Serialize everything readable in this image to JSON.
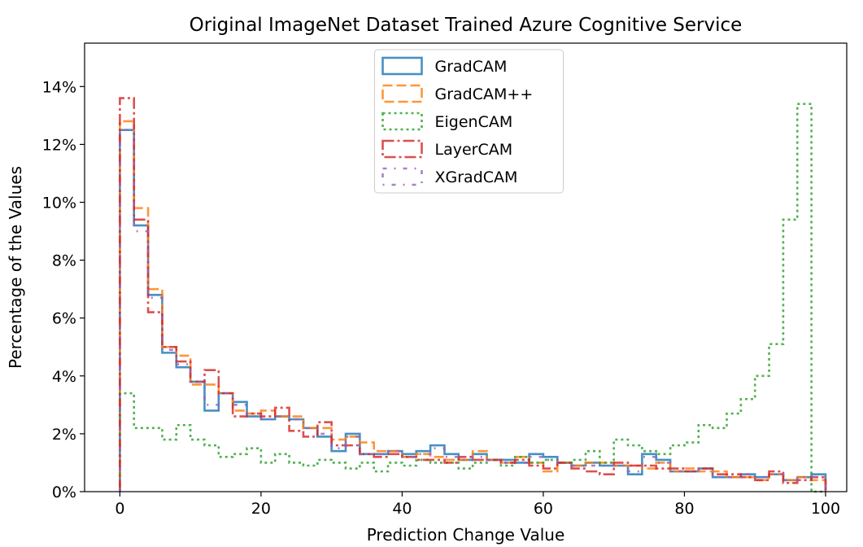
{
  "chart_data": {
    "type": "histogram-step",
    "title": "Original ImageNet Dataset Trained Azure Cognitive Service",
    "xlabel": "Prediction Change Value",
    "ylabel": "Percentage of the Values",
    "xlim": [
      -5,
      103
    ],
    "ylim": [
      0,
      15.5
    ],
    "xticks": [
      0,
      20,
      40,
      60,
      80,
      100
    ],
    "xtick_labels": [
      "0",
      "20",
      "40",
      "60",
      "80",
      "100"
    ],
    "yticks": [
      0,
      2,
      4,
      6,
      8,
      10,
      12,
      14
    ],
    "ytick_labels": [
      "0%",
      "2%",
      "4%",
      "6%",
      "8%",
      "10%",
      "12%",
      "14%"
    ],
    "legend_position": "top-center",
    "bin_edges": [
      0,
      2,
      4,
      6,
      8,
      10,
      12,
      14,
      16,
      18,
      20,
      22,
      24,
      26,
      28,
      30,
      32,
      34,
      36,
      38,
      40,
      42,
      44,
      46,
      48,
      50,
      52,
      54,
      56,
      58,
      60,
      62,
      64,
      66,
      68,
      70,
      72,
      74,
      76,
      78,
      80,
      82,
      84,
      86,
      88,
      90,
      92,
      94,
      96,
      98,
      100
    ],
    "series": [
      {
        "name": "GradCAM",
        "color": "#1f77b4",
        "dash": "solid",
        "values": [
          12.5,
          9.2,
          6.8,
          4.8,
          4.3,
          3.8,
          2.8,
          3.4,
          3.1,
          2.6,
          2.5,
          2.6,
          2.5,
          2.2,
          1.9,
          1.4,
          2.0,
          1.3,
          1.3,
          1.4,
          1.3,
          1.4,
          1.6,
          1.3,
          1.1,
          1.3,
          1.1,
          1.1,
          1.0,
          1.3,
          1.2,
          1.0,
          0.9,
          1.0,
          0.9,
          0.9,
          0.6,
          1.3,
          1.1,
          0.7,
          0.7,
          0.8,
          0.5,
          0.5,
          0.6,
          0.5,
          0.6,
          0.4,
          0.5,
          0.6
        ]
      },
      {
        "name": "GradCAM++",
        "color": "#ff7f0e",
        "dash": "dashed",
        "values": [
          12.8,
          9.8,
          7.0,
          5.0,
          4.7,
          3.7,
          3.7,
          3.4,
          2.8,
          2.7,
          2.8,
          2.6,
          2.6,
          2.2,
          2.2,
          1.8,
          1.9,
          1.7,
          1.4,
          1.4,
          1.2,
          1.3,
          1.2,
          1.1,
          1.1,
          1.4,
          1.1,
          1.0,
          1.2,
          1.0,
          0.7,
          1.0,
          0.9,
          1.0,
          1.0,
          0.9,
          0.9,
          0.8,
          1.0,
          0.7,
          0.8,
          0.7,
          0.7,
          0.5,
          0.5,
          0.4,
          0.6,
          0.4,
          0.5,
          0.4
        ]
      },
      {
        "name": "EigenCAM",
        "color": "#2ca02c",
        "dash": "dotted",
        "values": [
          3.4,
          2.2,
          2.2,
          1.8,
          2.3,
          1.8,
          1.6,
          1.2,
          1.3,
          1.5,
          1.0,
          1.3,
          1.0,
          0.9,
          1.1,
          1.0,
          0.8,
          1.0,
          0.7,
          1.0,
          0.9,
          1.1,
          1.0,
          1.0,
          0.8,
          1.0,
          1.1,
          0.9,
          1.2,
          1.0,
          1.1,
          1.0,
          1.1,
          1.4,
          1.0,
          1.8,
          1.6,
          1.4,
          1.3,
          1.6,
          1.7,
          2.3,
          2.2,
          2.7,
          3.2,
          4.0,
          5.1,
          9.4,
          13.4,
          0.0
        ]
      },
      {
        "name": "LayerCAM",
        "color": "#d62728",
        "dash": "dashdot",
        "values": [
          13.6,
          9.4,
          6.2,
          5.0,
          4.5,
          3.8,
          4.2,
          3.4,
          2.6,
          2.7,
          2.6,
          2.9,
          2.1,
          1.9,
          2.4,
          1.6,
          1.6,
          1.3,
          1.2,
          1.3,
          1.2,
          1.1,
          1.1,
          1.0,
          1.2,
          1.1,
          1.1,
          1.0,
          1.1,
          0.9,
          0.8,
          1.0,
          0.8,
          0.7,
          0.6,
          1.0,
          0.9,
          0.9,
          0.8,
          0.8,
          0.7,
          0.8,
          0.6,
          0.6,
          0.5,
          0.4,
          0.7,
          0.3,
          0.4,
          0.5
        ]
      },
      {
        "name": "XGradCAM",
        "color": "#9467bd",
        "dash": "loosedashdot",
        "values": [
          12.5,
          9.0,
          6.7,
          4.9,
          4.4,
          3.8,
          3.0,
          3.4,
          3.0,
          2.6,
          2.5,
          2.6,
          2.5,
          2.2,
          2.0,
          1.5,
          1.9,
          1.3,
          1.3,
          1.4,
          1.2,
          1.3,
          1.5,
          1.2,
          1.1,
          1.2,
          1.1,
          1.0,
          1.0,
          1.2,
          1.1,
          1.0,
          0.9,
          0.9,
          0.9,
          0.9,
          0.7,
          1.2,
          1.0,
          0.7,
          0.7,
          0.8,
          0.5,
          0.5,
          0.6,
          0.5,
          0.6,
          0.4,
          0.5,
          0.5
        ]
      }
    ]
  }
}
